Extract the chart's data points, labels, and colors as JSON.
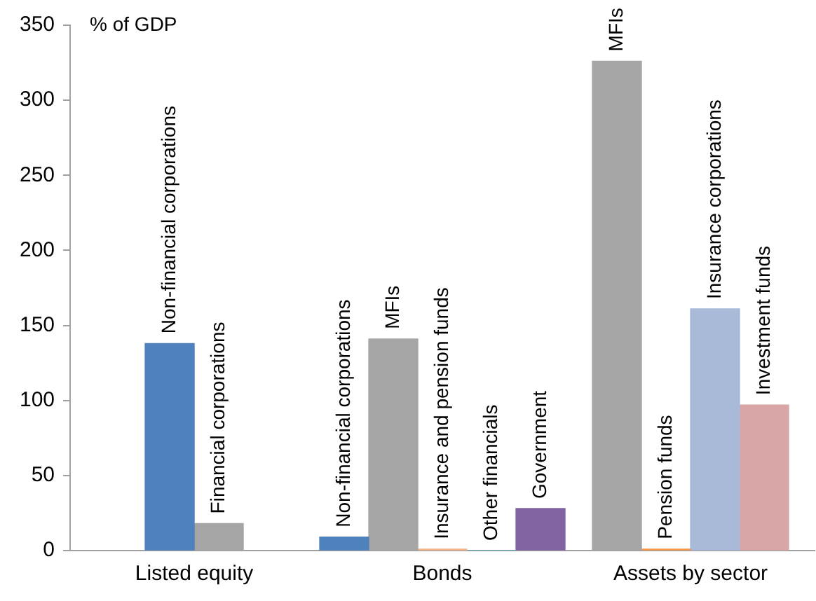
{
  "chart_data": {
    "type": "bar",
    "ylabel": "% of GDP",
    "categories": [
      "Listed equity",
      "Bonds",
      "Assets by sector"
    ],
    "series": [
      {
        "name": "Non-financial corporations",
        "color": "#4f81bd",
        "values": [
          138,
          9,
          null
        ]
      },
      {
        "name": "Financial corporations",
        "color": "#a5a5a5",
        "values": [
          18,
          null,
          null
        ]
      },
      {
        "name": "MFIs",
        "color": "#a5a5a5",
        "values": [
          null,
          141,
          326
        ]
      },
      {
        "name": "Insurance and pension funds",
        "color": "#f7b38a",
        "values": [
          null,
          1,
          null
        ]
      },
      {
        "name": "Other financials",
        "color": "#4bacc6",
        "values": [
          null,
          0,
          null
        ]
      },
      {
        "name": "Government",
        "color": "#8064a2",
        "values": [
          null,
          28,
          null
        ]
      },
      {
        "name": "Pension funds",
        "color": "#f79646",
        "values": [
          null,
          null,
          1
        ]
      },
      {
        "name": "Insurance corporations",
        "color": "#a9b9d8",
        "values": [
          null,
          null,
          161
        ]
      },
      {
        "name": "Investment funds",
        "color": "#d8a6a6",
        "values": [
          null,
          null,
          97
        ]
      }
    ],
    "ylim": [
      0,
      350
    ],
    "yticks": [
      0,
      50,
      100,
      150,
      200,
      250,
      300,
      350
    ],
    "grid": false,
    "legend": false
  }
}
